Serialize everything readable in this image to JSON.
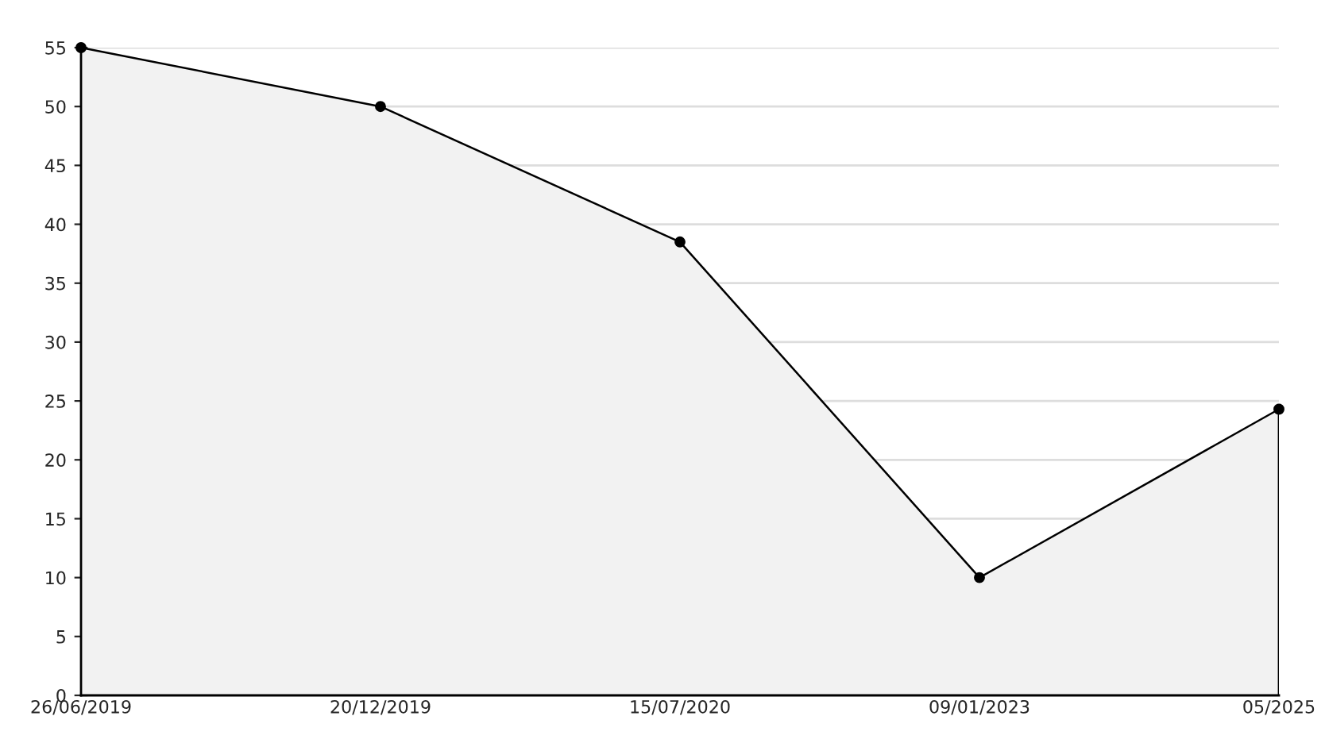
{
  "chart_data": {
    "type": "area",
    "categories": [
      "26/06/2019",
      "20/12/2019",
      "15/07/2020",
      "09/01/2023",
      "05/2025"
    ],
    "series": [
      {
        "color": "#000000",
        "values": [
          55,
          50,
          38.5,
          10,
          24.3
        ]
      }
    ],
    "ylim": [
      0,
      55
    ],
    "yticks": [
      0,
      5,
      10,
      15,
      20,
      25,
      30,
      35,
      40,
      45,
      50,
      55
    ],
    "grid": "y",
    "marker": "circle",
    "line_style": "solid",
    "legend": false
  }
}
